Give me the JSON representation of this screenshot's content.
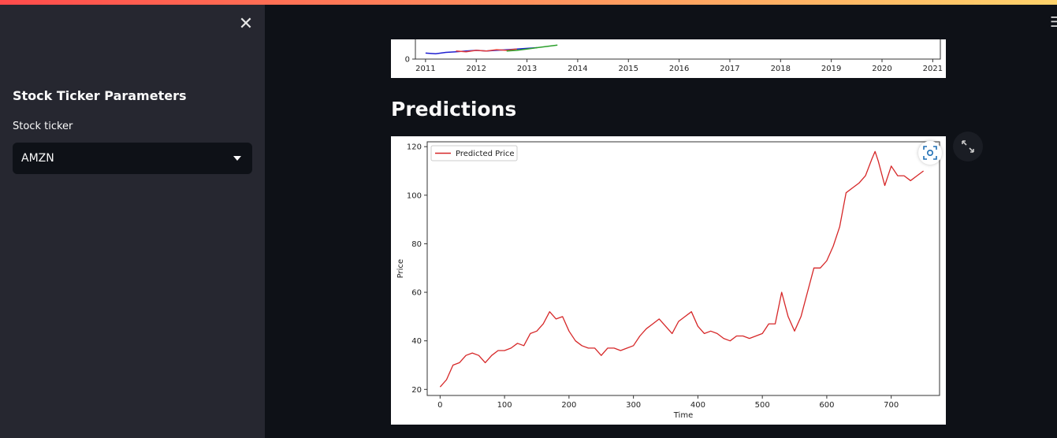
{
  "sidebar": {
    "close_icon": "close-icon",
    "title": "Stock Ticker Parameters",
    "ticker_label": "Stock ticker",
    "ticker_value": "AMZN"
  },
  "main": {
    "predictions_heading": "Predictions"
  },
  "chart_data": [
    {
      "type": "line",
      "x_ticks": [
        "2011",
        "2012",
        "2013",
        "2014",
        "2015",
        "2016",
        "2017",
        "2018",
        "2019",
        "2020",
        "2021"
      ],
      "y_ticks_visible": [
        "0"
      ],
      "series": [
        {
          "color": "#1f1fd0",
          "x": [
            2011.0,
            2011.2,
            2011.4,
            2011.6,
            2011.8,
            2012.0,
            2012.2,
            2012.4,
            2012.6,
            2012.8,
            2013.0,
            2013.2
          ],
          "values": [
            9,
            8,
            10,
            11,
            12,
            13,
            12,
            13,
            14,
            15,
            16,
            17
          ]
        },
        {
          "color": "#e23b3b",
          "x": [
            2011.6,
            2011.8,
            2012.0,
            2012.2,
            2012.4,
            2012.6,
            2012.8
          ],
          "values": [
            12,
            11,
            13,
            12,
            14,
            13,
            15
          ]
        },
        {
          "color": "#2ca02c",
          "x": [
            2012.6,
            2012.8,
            2013.0,
            2013.2,
            2013.4,
            2013.6
          ],
          "values": [
            12,
            13,
            15,
            17,
            19,
            21
          ]
        }
      ]
    },
    {
      "type": "line",
      "xlabel": "Time",
      "ylabel": "Price",
      "xlim": [
        -20,
        775
      ],
      "ylim": [
        17.5,
        122
      ],
      "x_ticks": [
        0,
        100,
        200,
        300,
        400,
        500,
        600,
        700
      ],
      "y_ticks": [
        20,
        40,
        60,
        80,
        100,
        120
      ],
      "legend": "top-left",
      "series": [
        {
          "name": "Predicted Price",
          "color": "#d62728",
          "x": [
            0,
            10,
            20,
            30,
            40,
            50,
            60,
            70,
            80,
            90,
            100,
            110,
            120,
            130,
            140,
            150,
            160,
            170,
            180,
            190,
            200,
            210,
            220,
            230,
            240,
            250,
            260,
            270,
            280,
            290,
            300,
            310,
            320,
            330,
            340,
            350,
            360,
            370,
            380,
            390,
            400,
            410,
            420,
            430,
            440,
            450,
            460,
            470,
            480,
            490,
            500,
            510,
            520,
            530,
            540,
            550,
            560,
            570,
            580,
            590,
            600,
            610,
            620,
            630,
            640,
            650,
            660,
            670,
            675,
            680,
            690,
            700,
            710,
            720,
            730,
            740,
            750
          ],
          "values": [
            21,
            24,
            30,
            31,
            34,
            35,
            34,
            31,
            34,
            36,
            36,
            37,
            39,
            38,
            43,
            44,
            47,
            52,
            49,
            50,
            44,
            40,
            38,
            37,
            37,
            34,
            37,
            37,
            36,
            37,
            38,
            42,
            45,
            47,
            49,
            46,
            43,
            48,
            50,
            52,
            46,
            43,
            44,
            43,
            41,
            40,
            42,
            42,
            41,
            42,
            43,
            47,
            47,
            60,
            50,
            44,
            50,
            60,
            70,
            70,
            73,
            79,
            87,
            101,
            103,
            105,
            108,
            115,
            118,
            114,
            104,
            112,
            108,
            108,
            106,
            108,
            110
          ]
        }
      ]
    }
  ]
}
